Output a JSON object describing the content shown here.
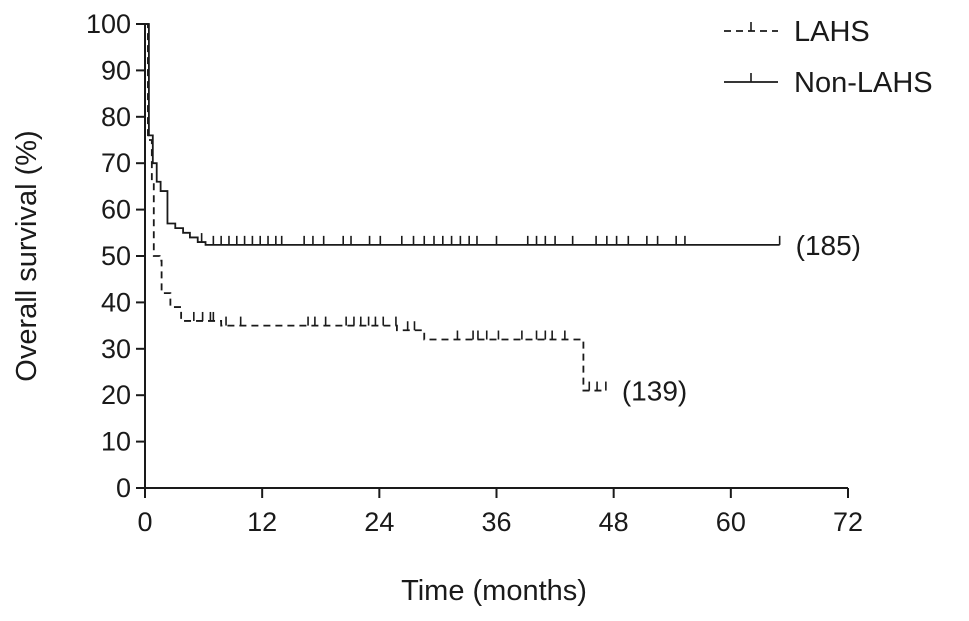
{
  "chart_data": {
    "type": "line",
    "subtype": "kaplan-meier step",
    "xlabel": "Time (months)",
    "ylabel": "Overall survival (%)",
    "xlim": [
      0,
      72
    ],
    "ylim": [
      0,
      100
    ],
    "x_ticks": [
      0,
      12,
      24,
      36,
      48,
      60,
      72
    ],
    "y_ticks": [
      0,
      10,
      20,
      30,
      40,
      50,
      60,
      70,
      80,
      90,
      100
    ],
    "grid": false,
    "legend_position": "top-right",
    "series": [
      {
        "name": "LAHS",
        "line_style": "dashed",
        "color": "#1a1a1a",
        "end_label": "(139)",
        "steps": [
          [
            0,
            100
          ],
          [
            0.3,
            75
          ],
          [
            0.7,
            66
          ],
          [
            0.9,
            50
          ],
          [
            1.5,
            49
          ],
          [
            1.7,
            42
          ],
          [
            2.6,
            39
          ],
          [
            3.7,
            36
          ],
          [
            7.8,
            35
          ],
          [
            25.8,
            34
          ],
          [
            28.6,
            32
          ],
          [
            44.9,
            21
          ],
          [
            47.2,
            21
          ]
        ],
        "censored": [
          [
            5.0,
            36
          ],
          [
            5.9,
            36
          ],
          [
            6.7,
            36
          ],
          [
            7.0,
            36
          ],
          [
            8.3,
            35
          ],
          [
            9.8,
            35
          ],
          [
            16.7,
            35
          ],
          [
            17.4,
            35
          ],
          [
            18.5,
            35
          ],
          [
            20.6,
            35
          ],
          [
            21.4,
            35
          ],
          [
            22.1,
            35
          ],
          [
            22.9,
            35
          ],
          [
            23.6,
            35
          ],
          [
            24.4,
            35
          ],
          [
            25.7,
            35
          ],
          [
            26.9,
            34
          ],
          [
            27.6,
            34
          ],
          [
            32.0,
            32
          ],
          [
            33.6,
            32
          ],
          [
            34.1,
            32
          ],
          [
            35.0,
            32
          ],
          [
            36.2,
            32
          ],
          [
            38.6,
            32
          ],
          [
            40.1,
            32
          ],
          [
            41.0,
            32
          ],
          [
            41.7,
            32
          ],
          [
            43.0,
            32
          ],
          [
            45.5,
            21
          ],
          [
            46.3,
            21
          ],
          [
            47.2,
            21
          ]
        ]
      },
      {
        "name": "Non-LAHS",
        "line_style": "solid",
        "color": "#1a1a1a",
        "end_label": "(185)",
        "steps": [
          [
            0,
            100
          ],
          [
            0.4,
            76
          ],
          [
            0.8,
            70
          ],
          [
            1.2,
            66
          ],
          [
            1.6,
            64
          ],
          [
            2.3,
            57
          ],
          [
            3.1,
            56
          ],
          [
            3.9,
            55
          ],
          [
            4.6,
            54
          ],
          [
            5.4,
            53
          ],
          [
            6.2,
            52.4
          ],
          [
            65.0,
            52.4
          ]
        ],
        "censored": [
          [
            5.8,
            53
          ],
          [
            7.0,
            52.4
          ],
          [
            7.8,
            52.4
          ],
          [
            8.6,
            52.4
          ],
          [
            9.4,
            52.4
          ],
          [
            10.2,
            52.4
          ],
          [
            11.0,
            52.4
          ],
          [
            11.8,
            52.4
          ],
          [
            12.6,
            52.4
          ],
          [
            13.4,
            52.4
          ],
          [
            14.0,
            52.4
          ],
          [
            16.3,
            52.4
          ],
          [
            17.2,
            52.4
          ],
          [
            18.3,
            52.4
          ],
          [
            20.3,
            52.4
          ],
          [
            21.1,
            52.4
          ],
          [
            23.0,
            52.4
          ],
          [
            24.1,
            52.4
          ],
          [
            26.3,
            52.4
          ],
          [
            27.5,
            52.4
          ],
          [
            28.6,
            52.4
          ],
          [
            29.6,
            52.4
          ],
          [
            30.5,
            52.4
          ],
          [
            31.4,
            52.4
          ],
          [
            32.3,
            52.4
          ],
          [
            33.2,
            52.4
          ],
          [
            34.0,
            52.4
          ],
          [
            36.0,
            52.4
          ],
          [
            39.2,
            52.4
          ],
          [
            40.1,
            52.4
          ],
          [
            41.0,
            52.4
          ],
          [
            42.0,
            52.4
          ],
          [
            43.8,
            52.4
          ],
          [
            46.2,
            52.4
          ],
          [
            47.3,
            52.4
          ],
          [
            48.3,
            52.4
          ],
          [
            49.5,
            52.4
          ],
          [
            51.4,
            52.4
          ],
          [
            52.5,
            52.4
          ],
          [
            54.4,
            52.4
          ],
          [
            55.3,
            52.4
          ],
          [
            65.0,
            52.4
          ]
        ]
      }
    ]
  }
}
